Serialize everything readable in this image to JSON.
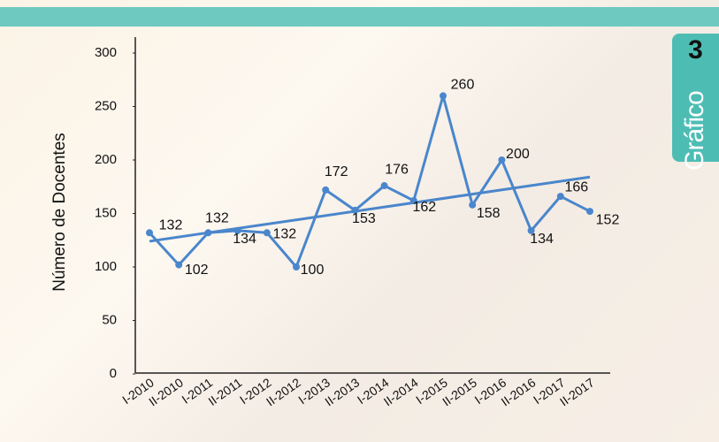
{
  "badge": {
    "number": "3",
    "label": "Gráfico"
  },
  "chart_data": {
    "type": "line",
    "y_label": "Número de Docentes",
    "categories": [
      "I-2010",
      "II-2010",
      "I-2011",
      "II-2011",
      "I-2012",
      "II-2012",
      "I-2013",
      "II-2013",
      "I-2014",
      "II-2014",
      "I-2015",
      "II-2015",
      "I-2016",
      "II-2016",
      "I-2017",
      "II-2017"
    ],
    "values": [
      132,
      102,
      132,
      134,
      132,
      100,
      172,
      153,
      176,
      162,
      260,
      158,
      200,
      134,
      166,
      152
    ],
    "color": "#4a86cc",
    "trendline": true,
    "ylim": [
      0,
      300
    ],
    "yticks": [
      0,
      50,
      100,
      150,
      200,
      250,
      300
    ]
  }
}
